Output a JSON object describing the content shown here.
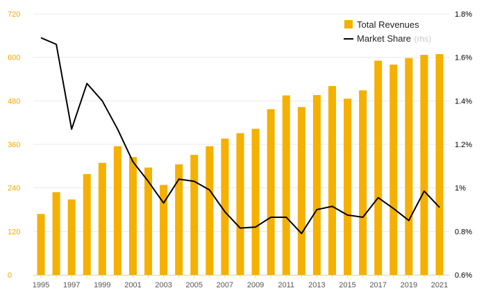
{
  "chart_data": {
    "type": "bar+line",
    "x": [
      1995,
      1996,
      1997,
      1998,
      1999,
      2000,
      2001,
      2002,
      2003,
      2004,
      2005,
      2006,
      2007,
      2008,
      2009,
      2010,
      2011,
      2012,
      2013,
      2014,
      2015,
      2016,
      2017,
      2018,
      2019,
      2020,
      2021
    ],
    "x_tick_labels": [
      "1995",
      "1997",
      "1999",
      "2001",
      "2003",
      "2005",
      "2007",
      "2009",
      "2011",
      "2013",
      "2015",
      "2017",
      "2019",
      "2021"
    ],
    "series": [
      {
        "name": "Total Revenues",
        "type": "bar",
        "axis": "left",
        "color": "#f5b000",
        "values": [
          168,
          228,
          208,
          278,
          309,
          355,
          325,
          296,
          248,
          305,
          331,
          355,
          376,
          391,
          403,
          457,
          495,
          463,
          496,
          521,
          486,
          509,
          591,
          580,
          598,
          607,
          609
        ]
      },
      {
        "name": "Market Share",
        "name_suffix": "(rhs)",
        "type": "line",
        "axis": "right",
        "color": "#000000",
        "values": [
          1.69,
          1.66,
          1.27,
          1.48,
          1.4,
          1.27,
          1.12,
          1.03,
          0.93,
          1.04,
          1.03,
          0.99,
          0.89,
          0.815,
          0.82,
          0.865,
          0.865,
          0.79,
          0.9,
          0.915,
          0.875,
          0.865,
          0.955,
          0.905,
          0.85,
          0.985,
          0.91
        ]
      }
    ],
    "y_left": {
      "ylim": [
        0,
        720
      ],
      "ticks": [
        "0",
        "120",
        "240",
        "360",
        "480",
        "600",
        "720"
      ],
      "tick_color": "#f2a900"
    },
    "y_right": {
      "ylim": [
        0.6,
        1.8
      ],
      "ticks": [
        "0.6%",
        "0.8%",
        "1%",
        "1.2%",
        "1.4%",
        "1.6%",
        "1.8%"
      ]
    },
    "legend_position": "top-right",
    "grid": "horizontal",
    "title": "",
    "xlabel": "",
    "ylabel": ""
  }
}
